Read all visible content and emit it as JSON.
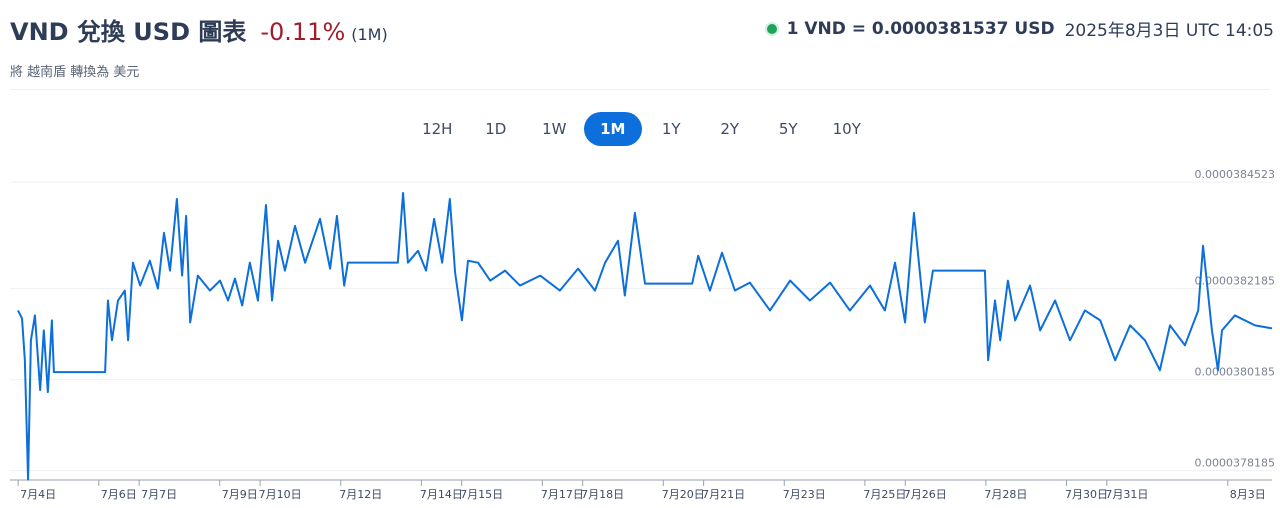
{
  "header": {
    "title": "VND 兌換 USD 圖表",
    "change": "-0.11%",
    "period": "(1M)",
    "subtitle": "將 越南盾 轉換為 美元",
    "rate": "1 VND = 0.0000381537 USD",
    "timestamp": "2025年8月3日 UTC 14:05"
  },
  "range_buttons": [
    "12H",
    "1D",
    "1W",
    "1M",
    "1Y",
    "2Y",
    "5Y",
    "10Y"
  ],
  "selected_range": "1M",
  "chart_data": {
    "type": "line",
    "color": "#0c6fdb",
    "grid": true,
    "x": [
      3.5,
      3.6,
      3.67,
      3.75,
      3.82,
      3.92,
      4.05,
      4.14,
      4.24,
      4.34,
      4.39,
      5.66,
      5.73,
      5.83,
      5.98,
      6.15,
      6.23,
      6.35,
      6.53,
      6.77,
      6.97,
      7.12,
      7.27,
      7.44,
      7.57,
      7.67,
      7.77,
      7.96,
      8.26,
      8.51,
      8.71,
      8.88,
      9.06,
      9.25,
      9.45,
      9.65,
      9.8,
      9.95,
      10.12,
      10.37,
      10.62,
      10.99,
      11.24,
      11.41,
      11.59,
      11.68,
      12.92,
      13.05,
      13.17,
      13.42,
      13.62,
      13.82,
      14.02,
      14.21,
      14.34,
      14.51,
      14.66,
      14.91,
      15.21,
      15.58,
      15.95,
      16.45,
      16.94,
      17.39,
      17.81,
      18.06,
      18.38,
      18.55,
      18.8,
      19.05,
      20.22,
      20.37,
      20.66,
      20.96,
      21.28,
      21.65,
      22.15,
      22.65,
      23.14,
      23.64,
      24.13,
      24.63,
      25.0,
      25.25,
      25.5,
      25.72,
      25.99,
      26.19,
      27.48,
      27.56,
      27.73,
      27.86,
      28.05,
      28.23,
      28.6,
      28.85,
      29.22,
      29.59,
      29.96,
      30.34,
      30.71,
      31.08,
      31.45,
      31.82,
      32.07,
      32.44,
      32.77,
      32.89,
      33.11,
      33.26,
      33.36,
      33.68,
      34.18,
      34.6
    ],
    "values": [
      3.81704e-05,
      3.8153e-05,
      3.80611e-05,
      3.7799e-05,
      3.81049e-05,
      3.81595e-05,
      3.79956e-05,
      3.81267e-05,
      3.79912e-05,
      3.81486e-05,
      3.80349e-05,
      3.80349e-05,
      3.81923e-05,
      3.81049e-05,
      3.81923e-05,
      3.82142e-05,
      3.81049e-05,
      3.82754e-05,
      3.82251e-05,
      3.82797e-05,
      3.82185e-05,
      3.8341e-05,
      3.82579e-05,
      3.84153e-05,
      3.8247e-05,
      3.83781e-05,
      3.81442e-05,
      3.8247e-05,
      3.82142e-05,
      3.8236e-05,
      3.81923e-05,
      3.82404e-05,
      3.81814e-05,
      3.82754e-05,
      3.81923e-05,
      3.84022e-05,
      3.81923e-05,
      3.83235e-05,
      3.82579e-05,
      3.83563e-05,
      3.82754e-05,
      3.83716e-05,
      3.82623e-05,
      3.83781e-05,
      3.82251e-05,
      3.82754e-05,
      3.82754e-05,
      3.84284e-05,
      3.82754e-05,
      3.83016e-05,
      3.82579e-05,
      3.83716e-05,
      3.82754e-05,
      3.84153e-05,
      3.82535e-05,
      3.81486e-05,
      3.82797e-05,
      3.82754e-05,
      3.8236e-05,
      3.82579e-05,
      3.82251e-05,
      3.8247e-05,
      3.82142e-05,
      3.82623e-05,
      3.82142e-05,
      3.82754e-05,
      3.83235e-05,
      3.82032e-05,
      3.83847e-05,
      3.82295e-05,
      3.82295e-05,
      3.82907e-05,
      3.82142e-05,
      3.82972e-05,
      3.82142e-05,
      3.82317e-05,
      3.81704e-05,
      3.8236e-05,
      3.81923e-05,
      3.82317e-05,
      3.81704e-05,
      3.82251e-05,
      3.81704e-05,
      3.82754e-05,
      3.81442e-05,
      3.83847e-05,
      3.81442e-05,
      3.82579e-05,
      3.82579e-05,
      3.80611e-05,
      3.81923e-05,
      3.81049e-05,
      3.8236e-05,
      3.81486e-05,
      3.82251e-05,
      3.81267e-05,
      3.81923e-05,
      3.81049e-05,
      3.81704e-05,
      3.81486e-05,
      3.80611e-05,
      3.81377e-05,
      3.81049e-05,
      3.80393e-05,
      3.81377e-05,
      3.80939e-05,
      3.81704e-05,
      3.83125e-05,
      3.81267e-05,
      3.80393e-05,
      3.81267e-05,
      3.81595e-05,
      3.81377e-05,
      3.81311e-05
    ],
    "xlim": [
      3.5,
      34.6
    ],
    "xticks": [
      {
        "value": 4,
        "label": "7月4日"
      },
      {
        "value": 6,
        "label": "7月6日"
      },
      {
        "value": 7,
        "label": "7月7日"
      },
      {
        "value": 9,
        "label": "7月9日"
      },
      {
        "value": 10,
        "label": "7月10日"
      },
      {
        "value": 12,
        "label": "7月12日"
      },
      {
        "value": 14,
        "label": "7月14日"
      },
      {
        "value": 15,
        "label": "7月15日"
      },
      {
        "value": 17,
        "label": "7月17日"
      },
      {
        "value": 18,
        "label": "7月18日"
      },
      {
        "value": 20,
        "label": "7月20日"
      },
      {
        "value": 21,
        "label": "7月21日"
      },
      {
        "value": 23,
        "label": "7月23日"
      },
      {
        "value": 25,
        "label": "7月25日"
      },
      {
        "value": 26,
        "label": "7月26日"
      },
      {
        "value": 28,
        "label": "7月28日"
      },
      {
        "value": 30,
        "label": "7月30日"
      },
      {
        "value": 31,
        "label": "7月31日"
      },
      {
        "value": 34,
        "label": "8月3日"
      }
    ],
    "ylim": [
      3.7798e-05,
      3.8468e-05
    ],
    "yticks": [
      3.78185e-05,
      3.80185e-05,
      3.82185e-05,
      3.84523e-05
    ]
  }
}
